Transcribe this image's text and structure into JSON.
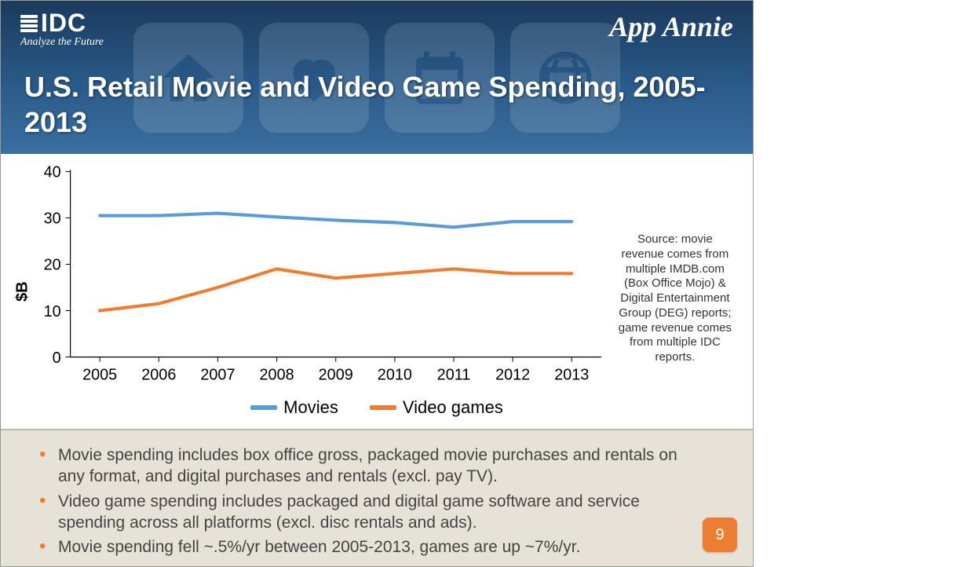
{
  "header": {
    "idc_brand": "IDC",
    "idc_tagline": "Analyze the Future",
    "right_brand": "App Annie",
    "title": "U.S. Retail Movie and Video Game Spending, 2005-2013"
  },
  "chart": {
    "type": "line",
    "ylabel": "$B",
    "ylim": [
      0,
      40
    ],
    "ytick_step": 10,
    "yticks": [
      0,
      10,
      20,
      30,
      40
    ],
    "categories": [
      "2005",
      "2006",
      "2007",
      "2008",
      "2009",
      "2010",
      "2011",
      "2012",
      "2013"
    ],
    "series": [
      {
        "name": "Movies",
        "color": "#5b9bd5",
        "line_width": 4,
        "values": [
          30.5,
          30.5,
          31.0,
          30.2,
          29.5,
          29.0,
          28.0,
          29.2,
          29.2
        ]
      },
      {
        "name": "Video games",
        "color": "#ed7d31",
        "line_width": 4,
        "values": [
          10.0,
          11.5,
          15.0,
          19.0,
          17.0,
          18.0,
          19.0,
          18.0,
          18.0
        ]
      }
    ],
    "background_color": "#ffffff",
    "grid": false,
    "axis_font_size": 20,
    "legend": {
      "items": [
        {
          "label": "Movies",
          "color": "#5b9bd5"
        },
        {
          "label": "Video games",
          "color": "#ed7d31"
        }
      ],
      "swatch_width": 34,
      "swatch_height": 6,
      "font_size": 22
    },
    "source_note": "Source: movie revenue comes from multiple IMDB.com  (Box Office Mojo) & Digital Entertainment Group (DEG) reports; game revenue comes from multiple IDC reports."
  },
  "footer": {
    "bullets": [
      "Movie spending includes box office gross, packaged movie purchases and rentals on any format, and digital purchases and rentals (excl. pay TV).",
      "Video game spending includes packaged and digital game software and service spending across all platforms (excl. disc rentals and ads).",
      "Movie spending fell ~.5%/yr between 2005-2013, games are up ~7%/yr."
    ],
    "bullet_color": "#ed7d31",
    "background_color": "#e6e2d7",
    "page_number": "9",
    "badge_color": "#ed7d31"
  }
}
